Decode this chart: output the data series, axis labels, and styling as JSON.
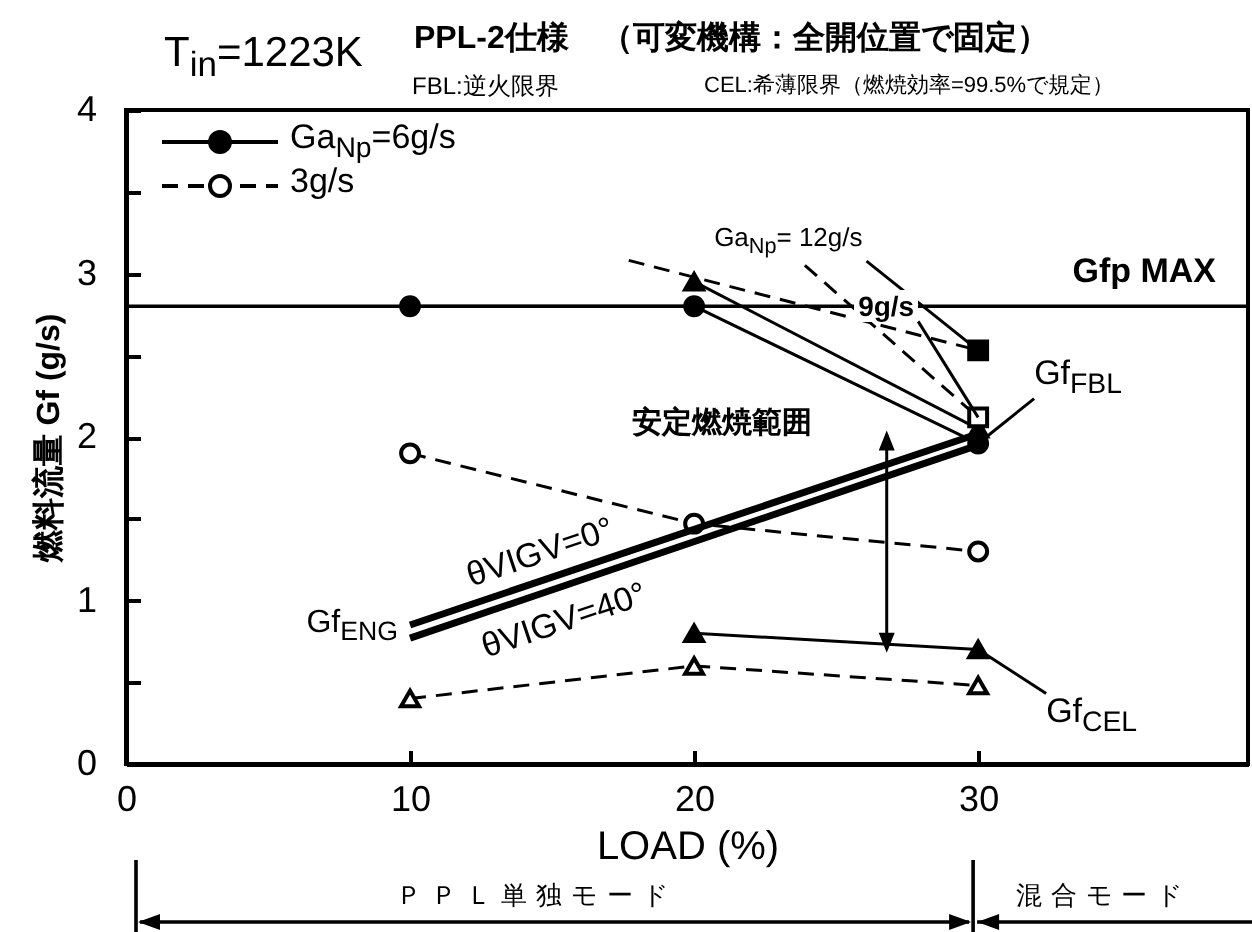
{
  "chart_data": {
    "type": "line",
    "title": "PPL-2仕様　（可変機構：全開位置で固定）",
    "xlabel": "LOAD (%)",
    "ylabel": "燃料流量 Gf (g/s)",
    "xlim": [
      0,
      39.5
    ],
    "ylim": [
      0,
      4
    ],
    "xticks": [
      0,
      10,
      20,
      30
    ],
    "yticks": [
      0,
      {
        "value": 0.5,
        "label": null
      },
      1,
      {
        "value": 1.5,
        "label": null
      },
      2,
      {
        "value": 2.5,
        "label": null
      },
      3,
      {
        "value": 3.5,
        "label": null
      },
      4
    ],
    "legend": "top left",
    "series": [
      {
        "name": "Ga$_{Np}$=6g/s",
        "color": "#000000",
        "x": [
          10,
          20,
          30
        ],
        "values": [
          2.8,
          2.8,
          1.96
        ],
        "marker": "circle",
        "line_style": "solid"
      },
      {
        "name": "3g/s",
        "color": "#000000",
        "x": [
          10,
          20,
          30
        ],
        "values": [
          1.9,
          1.47,
          1.3
        ],
        "marker": "circle",
        "line_style": "dashed"
      },
      {
        "color": "#000000",
        "x": [
          20,
          30
        ],
        "values": [
          0.8,
          0.7
        ],
        "marker": "triangle",
        "line_style": "solid"
      },
      {
        "color": "#000000",
        "x": [
          10,
          20,
          30
        ],
        "values": [
          0.4,
          0.6,
          0.48
        ],
        "marker": "triangle",
        "line_style": "dashed"
      },
      {
        "color": "#000000",
        "x": [
          10,
          30
        ],
        "values": [
          0.85,
          2.02
        ],
        "marker": "none",
        "line_style": "solid"
      },
      {
        "color": "#000000",
        "x": [
          10,
          30
        ],
        "values": [
          0.77,
          1.95
        ],
        "marker": "none",
        "line_style": "solid"
      },
      {
        "color": "#000000",
        "x": [
          20,
          30
        ],
        "values": [
          2.95,
          2.05
        ],
        "marker": "triangle",
        "line_style": "solid"
      },
      {
        "color": "#000000",
        "x": [
          17.7,
          30
        ],
        "values": [
          3.08,
          2.53
        ],
        "marker": "none",
        "line_style": "dashed"
      },
      {
        "color": "#000000",
        "x": [
          23.9,
          30
        ],
        "values": [
          3.05,
          2.12
        ],
        "marker": "none",
        "line_style": "dashed"
      },
      {
        "type": "scatter",
        "color": "#000000",
        "x": [
          30
        ],
        "values": [
          2.53
        ],
        "marker": "square",
        "line_style": "solid"
      },
      {
        "type": "scatter",
        "color": "#000000",
        "x": [
          30
        ],
        "values": [
          2.12
        ],
        "marker": "square",
        "line_style": "dashed"
      }
    ],
    "ref_lines": [
      {
        "axis": "y",
        "value": 2.8,
        "label": "Gfp MAX",
        "color": "#000000",
        "line_style": "solid"
      }
    ],
    "annotations": [
      "T$_{in}$=1223K",
      "FBL:逆火限界",
      "CEL:希薄限界（燃焼効率=99.5%で規定）",
      "安定燃焼範囲",
      {
        "text": "Ga$_{Np}$= 12g/s",
        "x": 30,
        "y": 2.53
      },
      {
        "text": "9g/s",
        "x": 30,
        "y": 2.12
      },
      {
        "text": "θVIGV=0°",
        "x": 14.6,
        "y": 1.12
      },
      {
        "text": "θVIGV=40°",
        "x": 15.4,
        "y": 1.09
      },
      {
        "text": "Gf$_{ENG}$",
        "x": 10,
        "y": 0.81
      },
      {
        "text": "Gf$_{FBL}$",
        "x": 30,
        "y": 1.96
      },
      {
        "text": "Gf$_{CEL}$",
        "x": 30,
        "y": 0.7
      },
      "ＰＰＬ単独モード",
      "混合モード"
    ]
  }
}
